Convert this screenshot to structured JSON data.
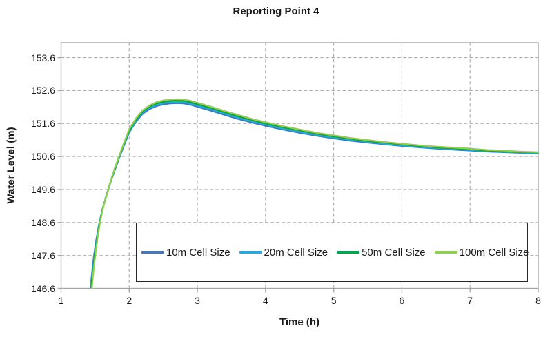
{
  "title": "Reporting Point 4",
  "styles": {
    "grid_color": "#ababab",
    "axis_color": "#a6a6a6",
    "text_color": "#1a1a1a",
    "legend_border_color": "#262626",
    "background": "#ffffff"
  },
  "chart_data": {
    "type": "line",
    "title": "Reporting Point 4",
    "xlabel": "Time (h)",
    "ylabel": "Water Level (m)",
    "xlim": [
      1,
      8
    ],
    "ylim": [
      146.6,
      154.05
    ],
    "x_ticks": [
      1,
      2,
      3,
      4,
      5,
      6,
      7,
      8
    ],
    "x_tick_labels": [
      "1",
      "2",
      "3",
      "4",
      "5",
      "6",
      "7",
      "8"
    ],
    "y_ticks": [
      153.6,
      152.6,
      151.6,
      150.6,
      149.6,
      148.6,
      147.6,
      146.6
    ],
    "y_tick_labels": [
      "153.6",
      "152.6",
      "151.6",
      "150.6",
      "149.6",
      "148.6",
      "147.6",
      "146.6"
    ],
    "grid": "dashed",
    "legend_position": "inside-bottom",
    "series": [
      {
        "name": "10m Cell Size",
        "color": "#4576b5",
        "x": [
          1.43,
          1.45,
          1.48,
          1.52,
          1.56,
          1.61,
          1.66,
          1.72,
          1.78,
          1.85,
          1.92,
          2.0,
          2.1,
          2.2,
          2.3,
          2.4,
          2.5,
          2.6,
          2.7,
          2.8,
          2.9,
          3.0,
          3.2,
          3.4,
          3.6,
          3.8,
          4.0,
          4.25,
          4.5,
          4.75,
          5.0,
          5.25,
          5.5,
          5.75,
          6.0,
          6.25,
          6.5,
          6.75,
          7.0,
          7.25,
          7.5,
          7.75,
          8.0
        ],
        "y": [
          146.6,
          147.0,
          147.55,
          148.12,
          148.58,
          149.02,
          149.38,
          149.78,
          150.14,
          150.54,
          150.92,
          151.33,
          151.66,
          151.9,
          152.04,
          152.13,
          152.18,
          152.21,
          152.22,
          152.21,
          152.17,
          152.11,
          151.99,
          151.86,
          151.74,
          151.63,
          151.53,
          151.42,
          151.32,
          151.23,
          151.15,
          151.08,
          151.02,
          150.97,
          150.92,
          150.88,
          150.84,
          150.81,
          150.78,
          150.75,
          150.73,
          150.71,
          150.69
        ]
      },
      {
        "name": "20m Cell Size",
        "color": "#2baae2",
        "x": [
          1.436,
          1.456,
          1.486,
          1.525,
          1.564,
          1.613,
          1.663,
          1.722,
          1.781,
          1.85,
          1.92,
          2.0,
          2.1,
          2.2,
          2.3,
          2.4,
          2.5,
          2.6,
          2.7,
          2.8,
          2.9,
          3.0,
          3.2,
          3.4,
          3.6,
          3.8,
          4.0,
          4.25,
          4.5,
          4.75,
          5.0,
          5.25,
          5.5,
          5.75,
          6.0,
          6.25,
          6.5,
          6.75,
          7.0,
          7.25,
          7.5,
          7.75,
          8.0
        ],
        "y": [
          146.61,
          147.01,
          147.56,
          148.13,
          148.6,
          149.04,
          149.4,
          149.8,
          150.17,
          150.57,
          150.95,
          151.36,
          151.69,
          151.94,
          152.08,
          152.17,
          152.22,
          152.25,
          152.26,
          152.25,
          152.21,
          152.15,
          152.03,
          151.9,
          151.78,
          151.67,
          151.57,
          151.45,
          151.35,
          151.26,
          151.18,
          151.11,
          151.05,
          150.99,
          150.94,
          150.9,
          150.86,
          150.83,
          150.8,
          150.77,
          150.75,
          150.72,
          150.7
        ]
      },
      {
        "name": "50m Cell Size",
        "color": "#00a550",
        "x": [
          1.443,
          1.463,
          1.492,
          1.531,
          1.569,
          1.617,
          1.666,
          1.724,
          1.782,
          1.851,
          1.921,
          2.0,
          2.1,
          2.2,
          2.3,
          2.4,
          2.5,
          2.6,
          2.7,
          2.8,
          2.9,
          3.0,
          3.2,
          3.4,
          3.6,
          3.8,
          4.0,
          4.25,
          4.5,
          4.75,
          5.0,
          5.25,
          5.5,
          5.75,
          6.0,
          6.25,
          6.5,
          6.75,
          7.0,
          7.25,
          7.5,
          7.75,
          8.0
        ],
        "y": [
          146.62,
          147.02,
          147.58,
          148.15,
          148.61,
          149.06,
          149.42,
          149.83,
          150.19,
          150.6,
          150.98,
          151.39,
          151.73,
          151.97,
          152.12,
          152.21,
          152.26,
          152.29,
          152.3,
          152.29,
          152.25,
          152.19,
          152.07,
          151.94,
          151.82,
          151.71,
          151.6,
          151.49,
          151.39,
          151.29,
          151.21,
          151.14,
          151.07,
          151.02,
          150.97,
          150.92,
          150.88,
          150.85,
          150.82,
          150.78,
          150.76,
          150.74,
          150.72
        ]
      },
      {
        "name": "100m Cell Size",
        "color": "#8fd14f",
        "x": [
          1.452,
          1.472,
          1.501,
          1.538,
          1.575,
          1.622,
          1.67,
          1.727,
          1.784,
          1.852,
          1.922,
          2.0,
          2.1,
          2.2,
          2.3,
          2.4,
          2.5,
          2.6,
          2.7,
          2.8,
          2.9,
          3.0,
          3.2,
          3.4,
          3.6,
          3.8,
          4.0,
          4.25,
          4.5,
          4.75,
          5.0,
          5.25,
          5.5,
          5.75,
          6.0,
          6.25,
          6.5,
          6.75,
          7.0,
          7.25,
          7.5,
          7.75,
          8.0
        ],
        "y": [
          146.63,
          147.03,
          147.59,
          148.16,
          148.63,
          149.08,
          149.44,
          149.85,
          150.22,
          150.62,
          151.01,
          151.43,
          151.76,
          152.01,
          152.15,
          152.25,
          152.3,
          152.33,
          152.34,
          152.33,
          152.29,
          152.23,
          152.11,
          151.98,
          151.86,
          151.74,
          151.64,
          151.52,
          151.42,
          151.32,
          151.24,
          151.16,
          151.1,
          151.04,
          150.99,
          150.94,
          150.9,
          150.87,
          150.84,
          150.8,
          150.78,
          150.75,
          150.73
        ]
      }
    ]
  }
}
